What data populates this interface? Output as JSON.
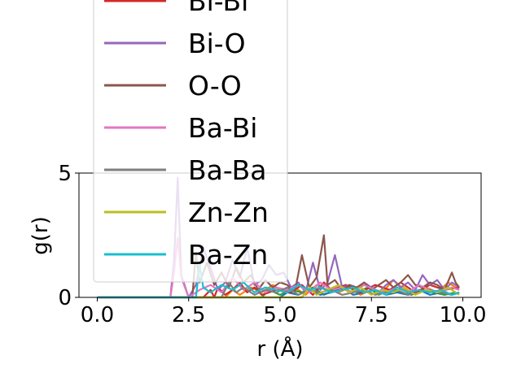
{
  "chart_data": {
    "type": "line",
    "xlabel": "r (Å)",
    "ylabel": "g(r)",
    "xlim": [
      -0.5,
      10.5
    ],
    "ylim": [
      0,
      5
    ],
    "xticks": [
      0.0,
      2.5,
      5.0,
      7.5,
      10.0
    ],
    "xtick_labels": [
      "0.0",
      "2.5",
      "5.0",
      "7.5",
      "10.0"
    ],
    "yticks": [
      0,
      5
    ],
    "ytick_labels": [
      "0",
      "5"
    ],
    "grid": false,
    "legend_position": "upper-left",
    "series": [
      {
        "name": "Bi-Bi",
        "color": "#d62728",
        "x": [
          0.0,
          2.9,
          3.1,
          3.2,
          3.3,
          3.5,
          3.7,
          3.9,
          4.1,
          4.3,
          4.5,
          4.9,
          5.3,
          5.6,
          5.9,
          6.2,
          6.4,
          6.8,
          7.2,
          7.6,
          8.0,
          8.3,
          8.7,
          9.1,
          9.5,
          9.9
        ],
        "y": [
          0,
          0,
          0.3,
          0,
          0.4,
          0.1,
          0.3,
          0.6,
          0.2,
          0.4,
          0.1,
          0.3,
          0.2,
          0.5,
          0.1,
          0.6,
          0.3,
          0.5,
          0.2,
          0.5,
          0.3,
          0.6,
          0.2,
          0.5,
          0.3,
          0.4
        ]
      },
      {
        "name": "Bi-O",
        "color": "#9467bd",
        "x": [
          0.0,
          2.0,
          2.1,
          2.2,
          2.3,
          2.5,
          2.7,
          2.9,
          3.1,
          3.3,
          3.5,
          3.7,
          3.9,
          4.1,
          4.3,
          4.5,
          4.7,
          4.9,
          5.1,
          5.3,
          5.5,
          5.7,
          5.9,
          6.1,
          6.3,
          6.5,
          6.7,
          6.9,
          7.1,
          7.3,
          7.5,
          7.7,
          7.9,
          8.1,
          8.3,
          8.5,
          8.7,
          8.9,
          9.1,
          9.3,
          9.5,
          9.7,
          9.9
        ],
        "y": [
          0,
          0,
          1.5,
          4.8,
          0.9,
          0,
          0.5,
          2.0,
          1.2,
          0.3,
          0.6,
          1.5,
          0.8,
          2.0,
          0.5,
          0.7,
          1.3,
          0.9,
          1.0,
          0.4,
          0.6,
          0.2,
          1.4,
          0.3,
          0.6,
          1.7,
          0.4,
          0.5,
          0.3,
          0.6,
          0.4,
          0.2,
          0.5,
          0.7,
          0.4,
          0.6,
          0.3,
          0.9,
          0.5,
          0.7,
          0.3,
          0.6,
          0.4
        ]
      },
      {
        "name": "O-O",
        "color": "#8c564b",
        "x": [
          0.0,
          2.6,
          2.7,
          2.8,
          3.0,
          3.2,
          3.4,
          3.6,
          3.8,
          4.0,
          4.2,
          4.4,
          4.6,
          4.8,
          5.0,
          5.2,
          5.4,
          5.6,
          5.8,
          6.0,
          6.2,
          6.3,
          6.5,
          6.7,
          6.9,
          7.1,
          7.3,
          7.5,
          7.7,
          7.9,
          8.1,
          8.3,
          8.5,
          8.7,
          8.9,
          9.1,
          9.3,
          9.5,
          9.7,
          9.8,
          9.9
        ],
        "y": [
          0,
          0,
          1.8,
          0.6,
          1.4,
          0.5,
          1.0,
          0.4,
          1.2,
          0.6,
          0.9,
          0.3,
          0.7,
          0.4,
          0.6,
          0.5,
          0.2,
          1.7,
          0.4,
          0.8,
          2.5,
          0.5,
          0.7,
          0.3,
          0.5,
          0.4,
          0.6,
          0.3,
          0.5,
          0.7,
          0.4,
          0.6,
          0.9,
          0.5,
          0.4,
          0.6,
          0.5,
          0.3,
          1.0,
          0.6,
          0.4
        ]
      },
      {
        "name": "Ba-Bi",
        "color": "#e377c2",
        "x": [
          0.0,
          2.0,
          2.1,
          2.2,
          2.3,
          2.5,
          2.8,
          3.1,
          3.4,
          3.7,
          4.0,
          4.3,
          4.6,
          4.9,
          5.2,
          5.5,
          5.8,
          6.1,
          6.4,
          6.7,
          7.0,
          7.3,
          7.6,
          7.9,
          8.2,
          8.5,
          8.8,
          9.1,
          9.4,
          9.7,
          9.9
        ],
        "y": [
          0,
          0,
          1.0,
          2.4,
          0.8,
          0,
          0.3,
          0.5,
          0.2,
          0.8,
          0.3,
          0.6,
          0.2,
          0.4,
          0.3,
          0.5,
          0.2,
          0.6,
          0.3,
          0.4,
          0.2,
          0.5,
          0.3,
          0.2,
          0.4,
          0.2,
          0.5,
          0.3,
          0.2,
          0.4,
          0.3
        ]
      },
      {
        "name": "Ba-Ba",
        "color": "#7f7f7f",
        "x": [
          0.0,
          3.4,
          3.6,
          3.8,
          4.0,
          4.3,
          4.6,
          4.9,
          5.2,
          5.5,
          5.8,
          6.1,
          6.4,
          6.7,
          7.0,
          7.3,
          7.6,
          7.9,
          8.2,
          8.5,
          8.8,
          9.1,
          9.4,
          9.7,
          9.9
        ],
        "y": [
          0,
          0,
          0.6,
          0.2,
          0.4,
          0.1,
          0.3,
          0.2,
          0.4,
          0.1,
          0.3,
          0.2,
          0.3,
          0.1,
          0.2,
          0.3,
          0.1,
          0.2,
          0.3,
          0.1,
          0.2,
          0.3,
          0.2,
          0.1,
          0.2
        ]
      },
      {
        "name": "Zn-Zn",
        "color": "#bcbd22",
        "x": [
          0.0,
          5.6,
          5.8,
          6.0,
          6.3,
          6.6,
          6.9,
          7.2,
          7.5,
          7.8,
          8.1,
          8.4,
          8.7,
          9.0,
          9.3,
          9.6,
          9.9
        ],
        "y": [
          0,
          0,
          0.4,
          0.1,
          0.3,
          0.5,
          0.2,
          0.4,
          0.1,
          0.3,
          0.2,
          0.4,
          0.1,
          0.3,
          0.2,
          0.4,
          0.1
        ]
      },
      {
        "name": "Ba-Zn",
        "color": "#17becf",
        "x": [
          0.0,
          2.7,
          2.8,
          2.9,
          3.1,
          3.4,
          3.7,
          4.0,
          4.3,
          4.6,
          4.9,
          5.2,
          5.5,
          5.8,
          6.1,
          6.4,
          6.7,
          7.0,
          7.3,
          7.6,
          7.9,
          8.2,
          8.5,
          8.8,
          9.1,
          9.4,
          9.7,
          9.9
        ],
        "y": [
          0,
          0,
          1.3,
          0.4,
          0.2,
          0.5,
          0.3,
          0.6,
          0.2,
          0.4,
          0.3,
          0.2,
          0.5,
          0.3,
          0.4,
          0.2,
          0.3,
          0.4,
          0.2,
          0.3,
          0.1,
          0.4,
          0.2,
          0.3,
          0.2,
          0.3,
          0.1,
          0.2
        ]
      },
      {
        "name": "",
        "color": "#ff7f0e",
        "x": [
          0.0,
          3.5,
          3.7,
          3.9,
          4.2,
          4.5,
          4.8,
          5.1,
          5.4,
          5.7,
          6.0,
          6.3,
          6.6,
          6.9,
          7.2,
          7.5,
          7.8,
          8.1,
          8.4,
          8.7,
          9.0,
          9.3,
          9.6,
          9.9
        ],
        "y": [
          0,
          0,
          0.3,
          0.1,
          0.4,
          0.2,
          0.5,
          0.2,
          0.4,
          0.1,
          0.5,
          0.3,
          0.2,
          0.4,
          0.1,
          0.3,
          0.2,
          0.7,
          0.3,
          0.2,
          0.4,
          0.2,
          0.6,
          0.3
        ]
      },
      {
        "name": "",
        "color": "#2ca02c",
        "x": [
          0.0,
          4.5,
          4.7,
          5.0,
          5.3,
          5.6,
          5.9,
          6.2,
          6.5,
          6.8,
          7.1,
          7.4,
          7.7,
          8.0,
          8.3,
          8.6,
          8.9,
          9.2,
          9.5,
          9.8
        ],
        "y": [
          0,
          0,
          0.3,
          0.1,
          0.3,
          0.2,
          0.4,
          0.1,
          0.3,
          0.5,
          0.2,
          0.4,
          0.1,
          0.3,
          0.2,
          0.1,
          0.3,
          0.2,
          0.1,
          0.2
        ]
      },
      {
        "name": "",
        "color": "#1f77b4",
        "x": [
          0.0,
          5.0,
          5.2,
          5.5,
          5.8,
          6.1,
          6.4,
          6.7,
          7.0,
          7.3,
          7.6,
          7.9,
          8.2,
          8.5,
          8.8,
          9.1,
          9.4,
          9.7,
          9.9
        ],
        "y": [
          0,
          0,
          0.2,
          0.1,
          0.3,
          0.1,
          0.2,
          0.4,
          0.1,
          0.2,
          0.3,
          0.1,
          0.2,
          0.1,
          0.3,
          0.1,
          0.2,
          0.1,
          0.2
        ]
      }
    ],
    "legend_entries": [
      "Bi-Bi",
      "Bi-O",
      "O-O",
      "Ba-Bi",
      "Ba-Ba",
      "Zn-Zn",
      "Ba-Zn"
    ]
  }
}
